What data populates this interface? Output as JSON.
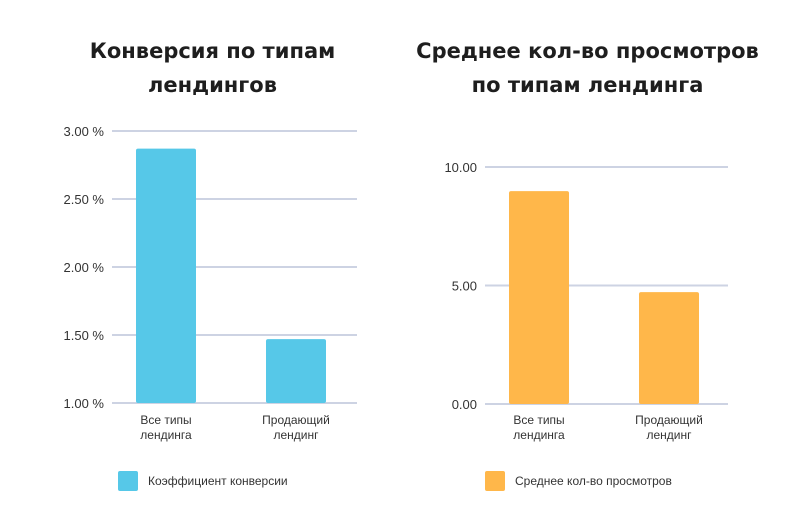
{
  "chart_data": [
    {
      "type": "bar",
      "title_lines": [
        "Конверсия по типам",
        "лендингов"
      ],
      "categories": [
        [
          "Все типы",
          "лендинга"
        ],
        [
          "Продающий",
          "лендинг"
        ]
      ],
      "series": [
        {
          "name": "Коэффициент конверсии",
          "values": [
            2.87,
            1.47
          ],
          "color": "#56c8e8"
        }
      ],
      "ylim": [
        1.0,
        3.0
      ],
      "yticks": [
        "3.00 %",
        "2.50 %",
        "2.00 %",
        "1.50 %",
        "1.00 %"
      ],
      "ytick_values": [
        3.0,
        2.5,
        2.0,
        1.5,
        1.0
      ],
      "grid": true,
      "legend": "bottom"
    },
    {
      "type": "bar",
      "title_lines": [
        "Среднее кол-во просмотров",
        "по типам лендинга"
      ],
      "categories": [
        [
          "Все типы",
          "лендинга"
        ],
        [
          "Продающий",
          "лендинг"
        ]
      ],
      "series": [
        {
          "name": "Среднее кол-во просмотров",
          "values": [
            8.98,
            4.72
          ],
          "color": "#ffb74a"
        }
      ],
      "ylim": [
        0,
        10
      ],
      "yticks": [
        "10.00",
        "5.00",
        "0.00"
      ],
      "ytick_values": [
        10,
        5,
        0
      ],
      "grid": true,
      "legend": "bottom"
    }
  ]
}
